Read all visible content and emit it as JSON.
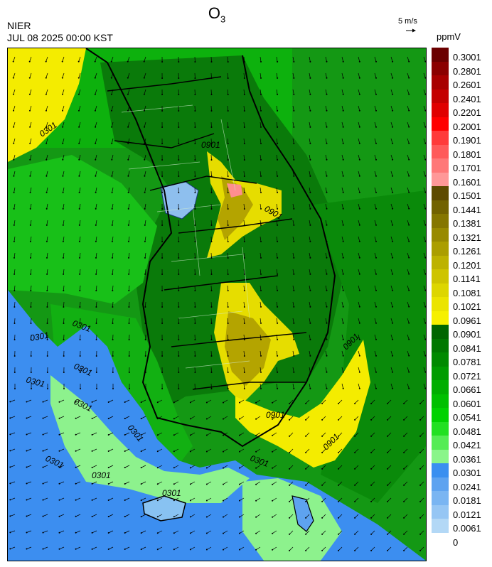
{
  "header": {
    "title_main": "O",
    "title_sub": "3",
    "agency": "NIER",
    "datetime": "JUL 08 2025 00:00 KST",
    "wind_reference": "5 m/s",
    "units": "ppmV"
  },
  "colorbar": {
    "labels": [
      "0.3001",
      "0.2801",
      "0.2601",
      "0.2401",
      "0.2201",
      "0.2001",
      "0.1901",
      "0.1801",
      "0.1701",
      "0.1601",
      "0.1501",
      "0.1441",
      "0.1381",
      "0.1321",
      "0.1261",
      "0.1201",
      "0.1141",
      "0.1081",
      "0.1021",
      "0.0961",
      "0.0901",
      "0.0841",
      "0.0781",
      "0.0721",
      "0.0661",
      "0.0601",
      "0.0541",
      "0.0481",
      "0.0421",
      "0.0361",
      "0.0301",
      "0.0241",
      "0.0181",
      "0.0121",
      "0.0061",
      "0"
    ],
    "colors": [
      "#6b0000",
      "#8b0000",
      "#a80000",
      "#c40000",
      "#e00000",
      "#ff0000",
      "#ff3a3a",
      "#ff5a5a",
      "#ff7878",
      "#ff9898",
      "#5e4a00",
      "#726200",
      "#857600",
      "#988a00",
      "#ab9e00",
      "#bdb200",
      "#cec400",
      "#ddd600",
      "#ebe400",
      "#f6f000",
      "#006600",
      "#007800",
      "#008a00",
      "#009c00",
      "#00ae00",
      "#00c000",
      "#00d200",
      "#22e022",
      "#55ec55",
      "#8af58a",
      "#3a8ff0",
      "#5ea3f0",
      "#7ab5f2",
      "#96c6f4",
      "#b3d8f6"
    ]
  },
  "map": {
    "contour_labels": [
      "0301",
      "0901",
      "0301",
      "0301",
      "0301",
      "0301",
      "0301",
      "0301",
      "0301",
      "0301",
      "0901",
      "0301",
      "0901",
      "0901",
      "0301",
      "0901"
    ]
  }
}
